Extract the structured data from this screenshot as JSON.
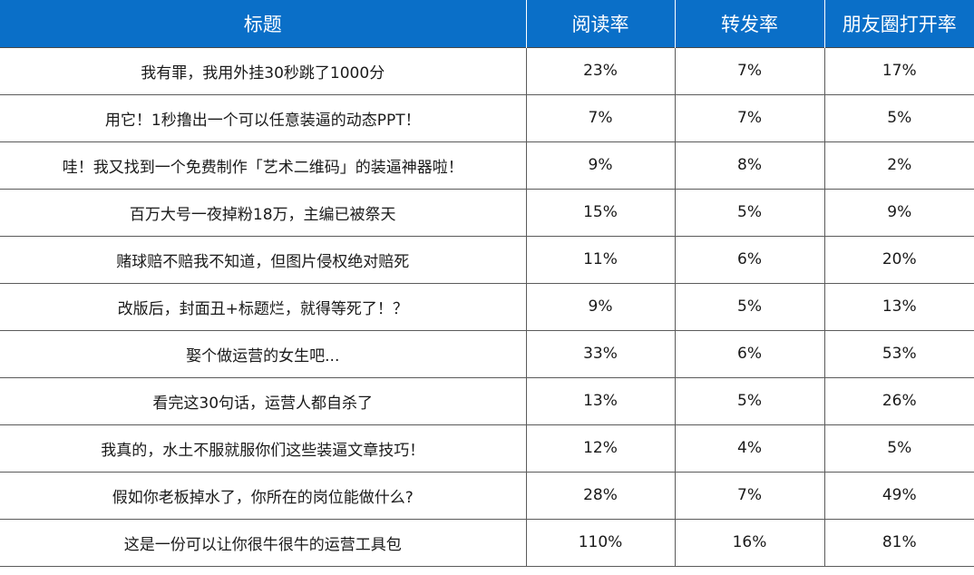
{
  "chart_data": {
    "type": "table",
    "columns": [
      "标题",
      "阅读率",
      "转发率",
      "朋友圈打开率"
    ],
    "rows": [
      {
        "title": "我有罪，我用外挂30秒跳了1000分",
        "read": "23%",
        "forward": "7%",
        "moments": "17%"
      },
      {
        "title": "用它！1秒撸出一个可以任意装逼的动态PPT！",
        "read": "7%",
        "forward": "7%",
        "moments": "5%"
      },
      {
        "title": "哇！我又找到一个免费制作「艺术二维码」的装逼神器啦！",
        "read": "9%",
        "forward": "8%",
        "moments": "2%"
      },
      {
        "title": "百万大号一夜掉粉18万，主编已被祭天",
        "read": "15%",
        "forward": "5%",
        "moments": "9%"
      },
      {
        "title": "赌球赔不赔我不知道，但图片侵权绝对赔死",
        "read": "11%",
        "forward": "6%",
        "moments": "20%"
      },
      {
        "title": "改版后，封面丑+标题烂，就得等死了！？",
        "read": "9%",
        "forward": "5%",
        "moments": "13%"
      },
      {
        "title": "娶个做运营的女生吧...",
        "read": "33%",
        "forward": "6%",
        "moments": "53%"
      },
      {
        "title": "看完这30句话，运营人都自杀了",
        "read": "13%",
        "forward": "5%",
        "moments": "26%"
      },
      {
        "title": "我真的，水土不服就服你们这些装逼文章技巧！",
        "read": "12%",
        "forward": "4%",
        "moments": "5%"
      },
      {
        "title": "假如你老板掉水了，你所在的岗位能做什么?",
        "read": "28%",
        "forward": "7%",
        "moments": "49%"
      },
      {
        "title": "这是一份可以让你很牛很牛的运营工具包",
        "read": "110%",
        "forward": "16%",
        "moments": "81%"
      }
    ],
    "header_color": "#0a6fc8",
    "header_text_color": "#ffffff",
    "grid": true
  }
}
